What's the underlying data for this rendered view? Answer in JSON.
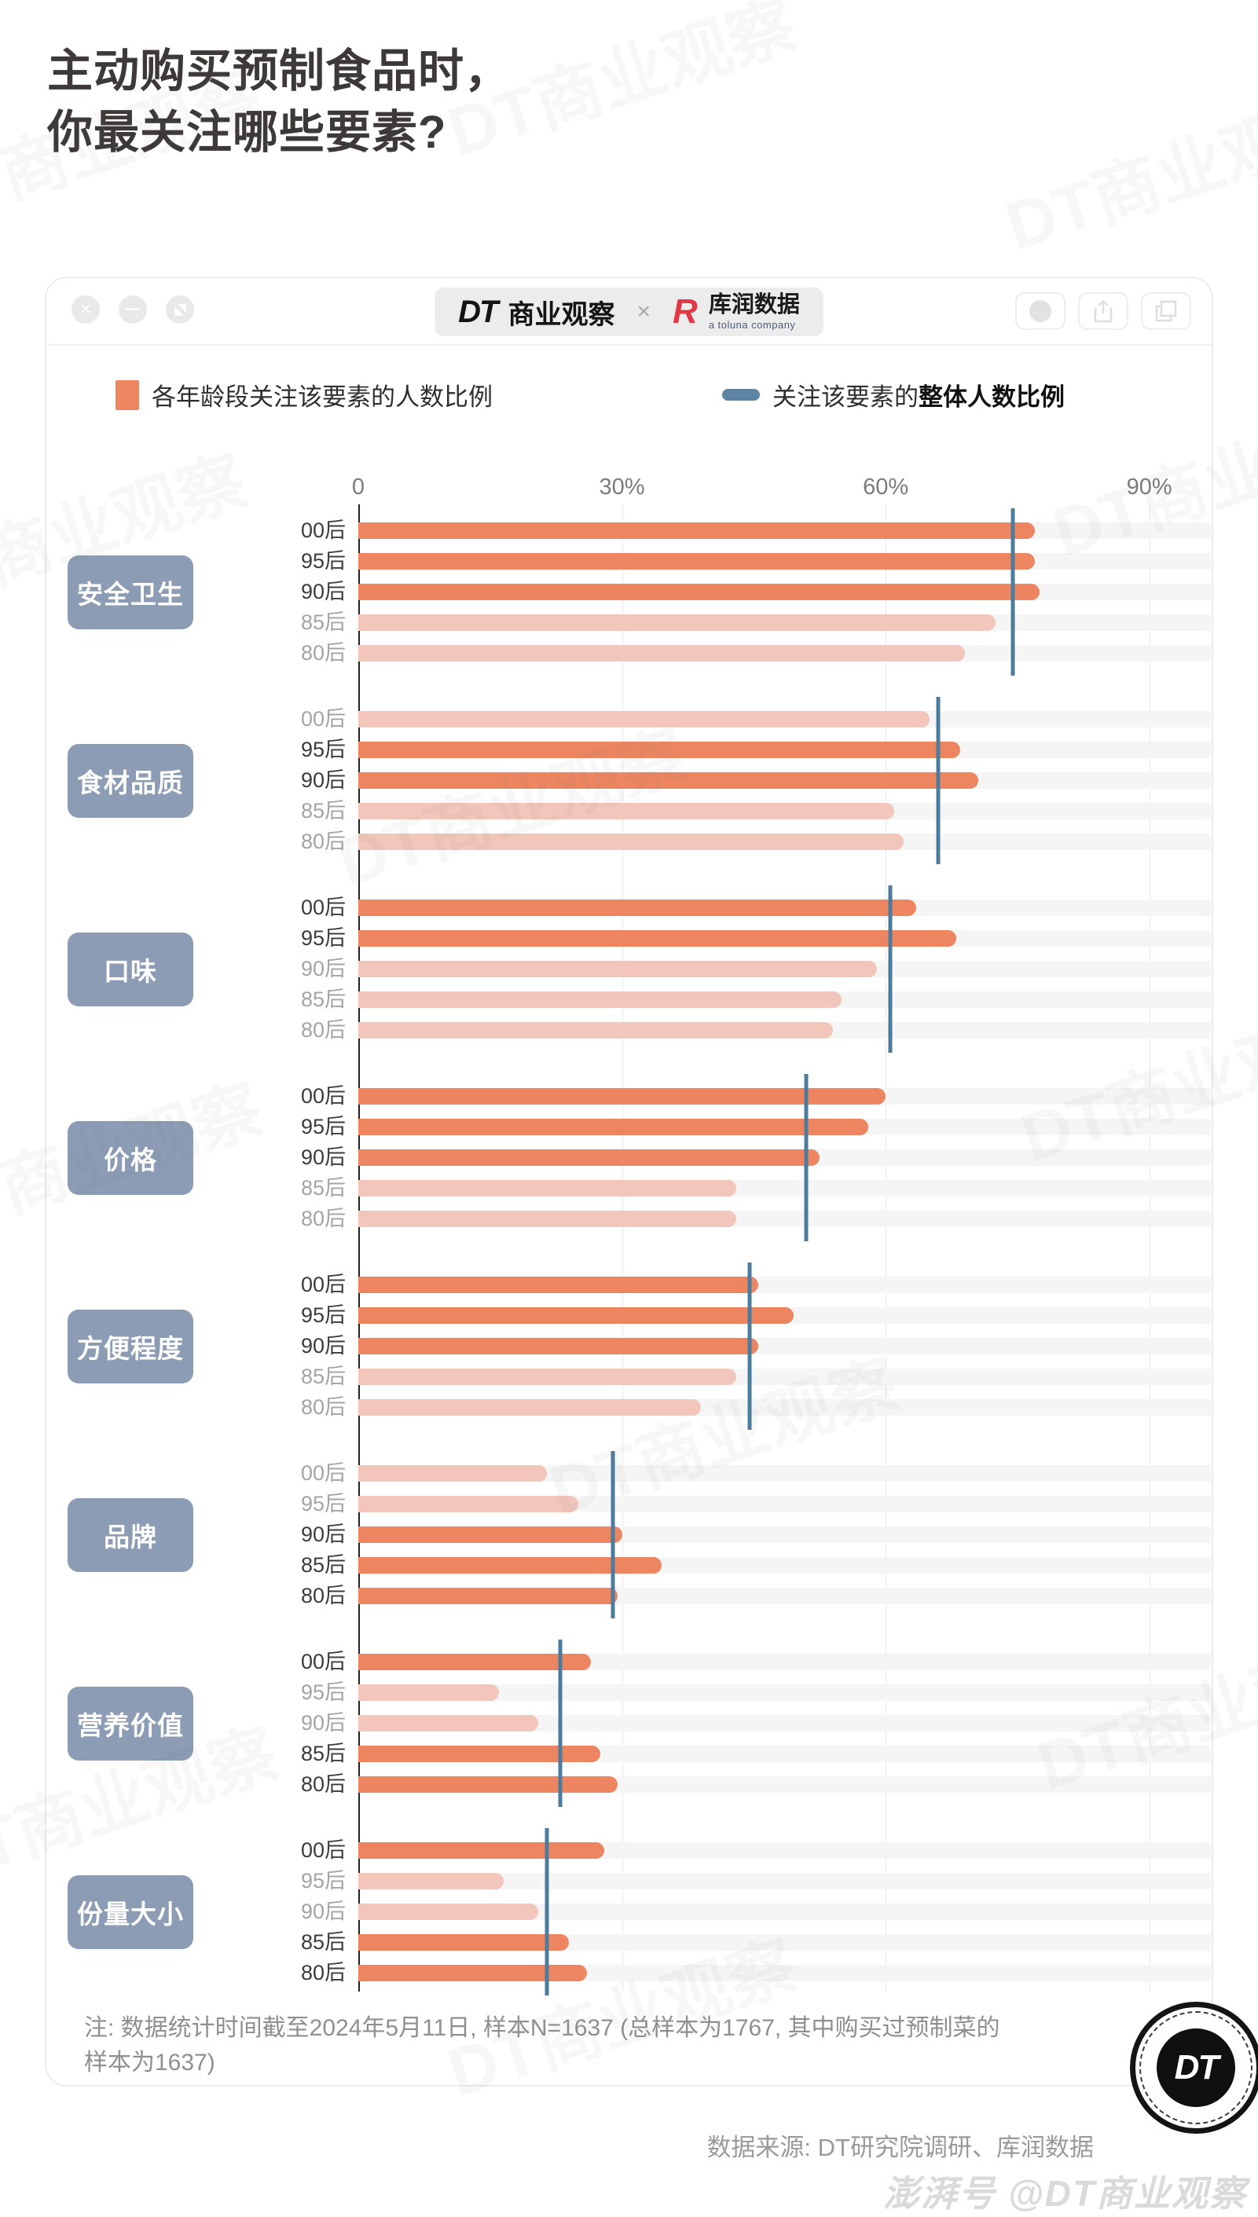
{
  "page": {
    "title_line1": "主动购买预制食品时，",
    "title_line2": "你最关注哪些要素?",
    "note_line1": "注: 数据统计时间截至2024年5月11日, 样本N=1637 (总样本为1767, 其中购买过预制菜的",
    "note_line2": "样本为1637)",
    "source": "数据来源: DT研究院调研、库润数据",
    "paihao_watermark": "澎湃号 @DT商业观察",
    "watermark_text": "DT商业观察"
  },
  "header": {
    "brand_dt": "DT",
    "brand_name": "商业观察",
    "cross": "×",
    "partner_logo": "R",
    "partner_name": "库润数据",
    "partner_sub": "a toluna company",
    "badge_dt": "DT"
  },
  "legend": {
    "bars_label": "各年龄段关注该要素的人数比例",
    "line_label_normal": "关注该要素的",
    "line_label_bold": "整体人数比例"
  },
  "axis": {
    "ticks": [
      {
        "label": "0",
        "value": 0
      },
      {
        "label": "30%",
        "value": 30
      },
      {
        "label": "60%",
        "value": 60
      },
      {
        "label": "90%",
        "value": 90
      }
    ]
  },
  "chart_data": {
    "type": "bar",
    "orientation": "horizontal",
    "unit": "%",
    "xlim": [
      0,
      90
    ],
    "gridlines": [
      30,
      60,
      90
    ],
    "legend_position": "top",
    "age_groups": [
      "00后",
      "95后",
      "90后",
      "85后",
      "80后"
    ],
    "categories": [
      {
        "name": "安全卫生",
        "values": [
          77,
          77,
          77.5,
          72.5,
          69
        ],
        "overall": 74.5
      },
      {
        "name": "食材品质",
        "values": [
          65,
          68.5,
          70.5,
          61,
          62
        ],
        "overall": 66
      },
      {
        "name": "口味",
        "values": [
          63.5,
          68,
          59,
          55,
          54
        ],
        "overall": 60.5
      },
      {
        "name": "价格",
        "values": [
          60,
          58,
          52.5,
          43,
          43
        ],
        "overall": 51
      },
      {
        "name": "方便程度",
        "values": [
          45.5,
          49.5,
          45.5,
          43,
          39
        ],
        "overall": 44.5
      },
      {
        "name": "品牌",
        "values": [
          21.5,
          25,
          30,
          34.5,
          29.5
        ],
        "overall": 29
      },
      {
        "name": "营养价值",
        "values": [
          26.5,
          16,
          20.5,
          27.5,
          29.5
        ],
        "overall": 23
      },
      {
        "name": "份量大小",
        "values": [
          28,
          16.5,
          20.5,
          24,
          26
        ],
        "overall": 21.5
      }
    ],
    "highlight_rule": "bar is bright orange when its value >= category overall, faded otherwise"
  },
  "colors": {
    "bar_bright": "#EC8560",
    "bar_faded": "#F2C6BA",
    "overall_line": "#4C7C9D",
    "legend_dash": "#5E84A3",
    "category_box": "#8B9CB4",
    "track": "#F6F5F5"
  }
}
